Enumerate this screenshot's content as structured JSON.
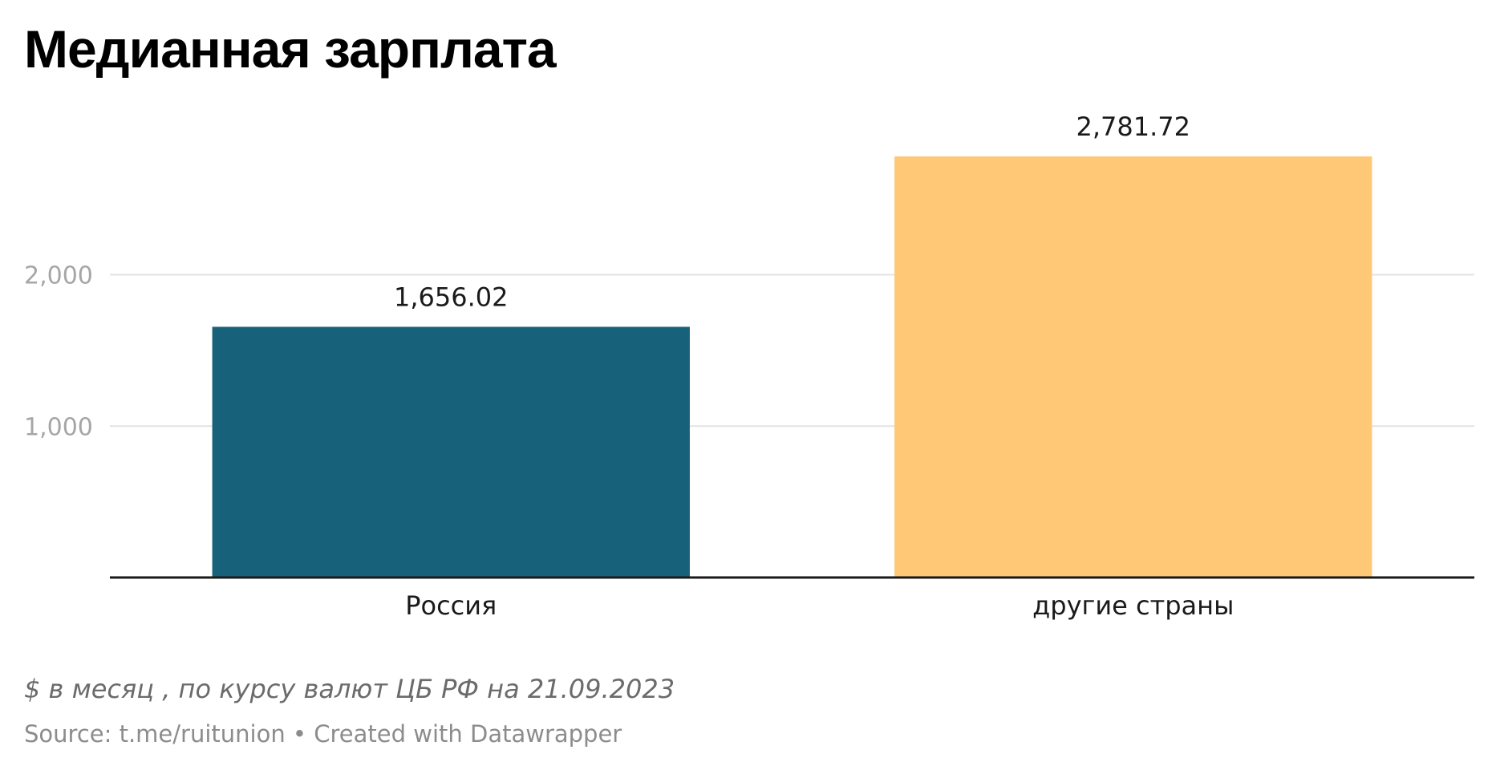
{
  "chart_data": {
    "type": "bar",
    "title": "Медианная зарплата",
    "categories": [
      "Россия",
      "другие страны"
    ],
    "values": [
      1656.02,
      2781.72
    ],
    "value_labels": [
      "1,656.02",
      "2,781.72"
    ],
    "colors": [
      "#17627a",
      "#fec877"
    ],
    "y_ticks": [
      1000,
      2000
    ],
    "y_tick_labels": [
      "1,000",
      "2,000"
    ],
    "ylim": [
      0,
      2781.72
    ],
    "grid": true,
    "xlabel": "",
    "ylabel": "",
    "note": "$ в месяц , по курсу валют ЦБ РФ на 21.09.2023",
    "footer": "Source: t.me/ruitunion • Created with Datawrapper"
  }
}
